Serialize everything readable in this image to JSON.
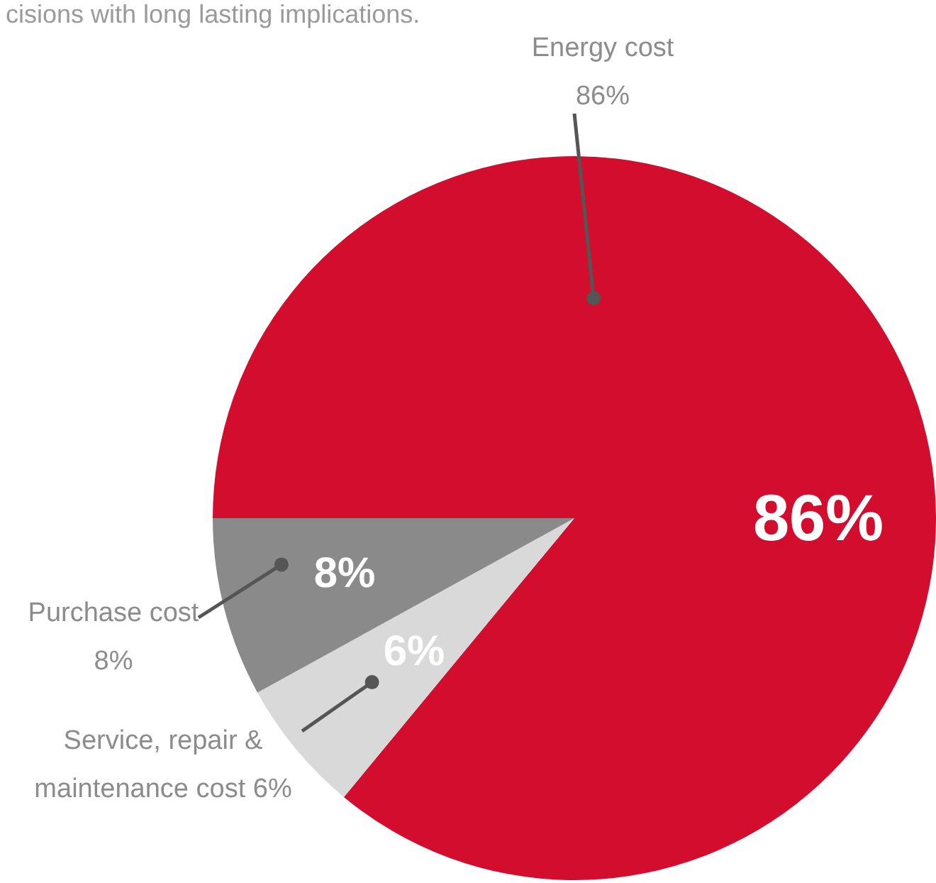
{
  "chart_data": {
    "type": "pie",
    "annotations": [
      "cisions with long lasting implications."
    ],
    "categories": [
      "Energy cost",
      "Service, repair & maintenance cost",
      "Purchase cost"
    ],
    "values": [
      86,
      6,
      8
    ],
    "value_labels": [
      "86%",
      "6%",
      "8%"
    ],
    "colors": [
      "#d30d2e",
      "#d9d9d9",
      "#8a8a8a"
    ]
  }
}
